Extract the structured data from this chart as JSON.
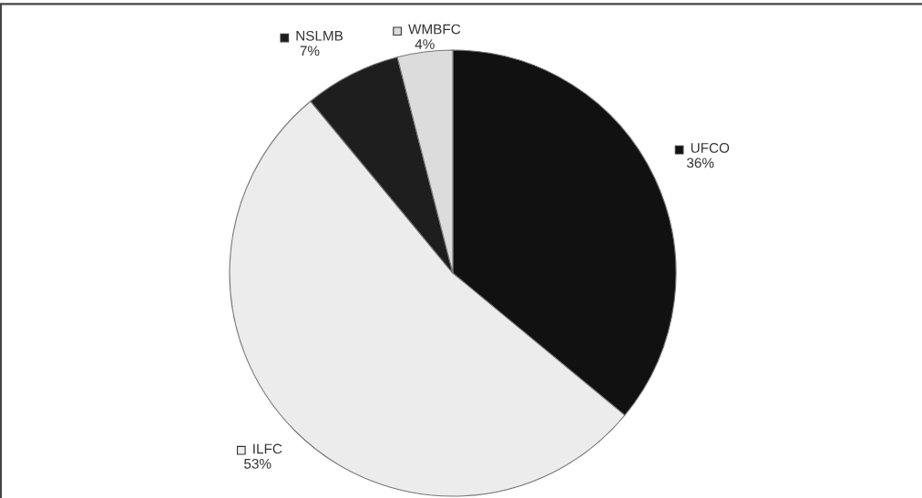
{
  "chart_data": {
    "type": "pie",
    "categories": [
      "UFCO",
      "ILFC",
      "NSLMB",
      "WMBFC"
    ],
    "values": [
      36,
      53,
      7,
      4
    ],
    "colors": [
      "#111111",
      "#ececec",
      "#1e1e1e",
      "#dcdcdc"
    ],
    "value_labels": [
      "36%",
      "53%",
      "7%",
      "4%"
    ],
    "legend": "top"
  }
}
